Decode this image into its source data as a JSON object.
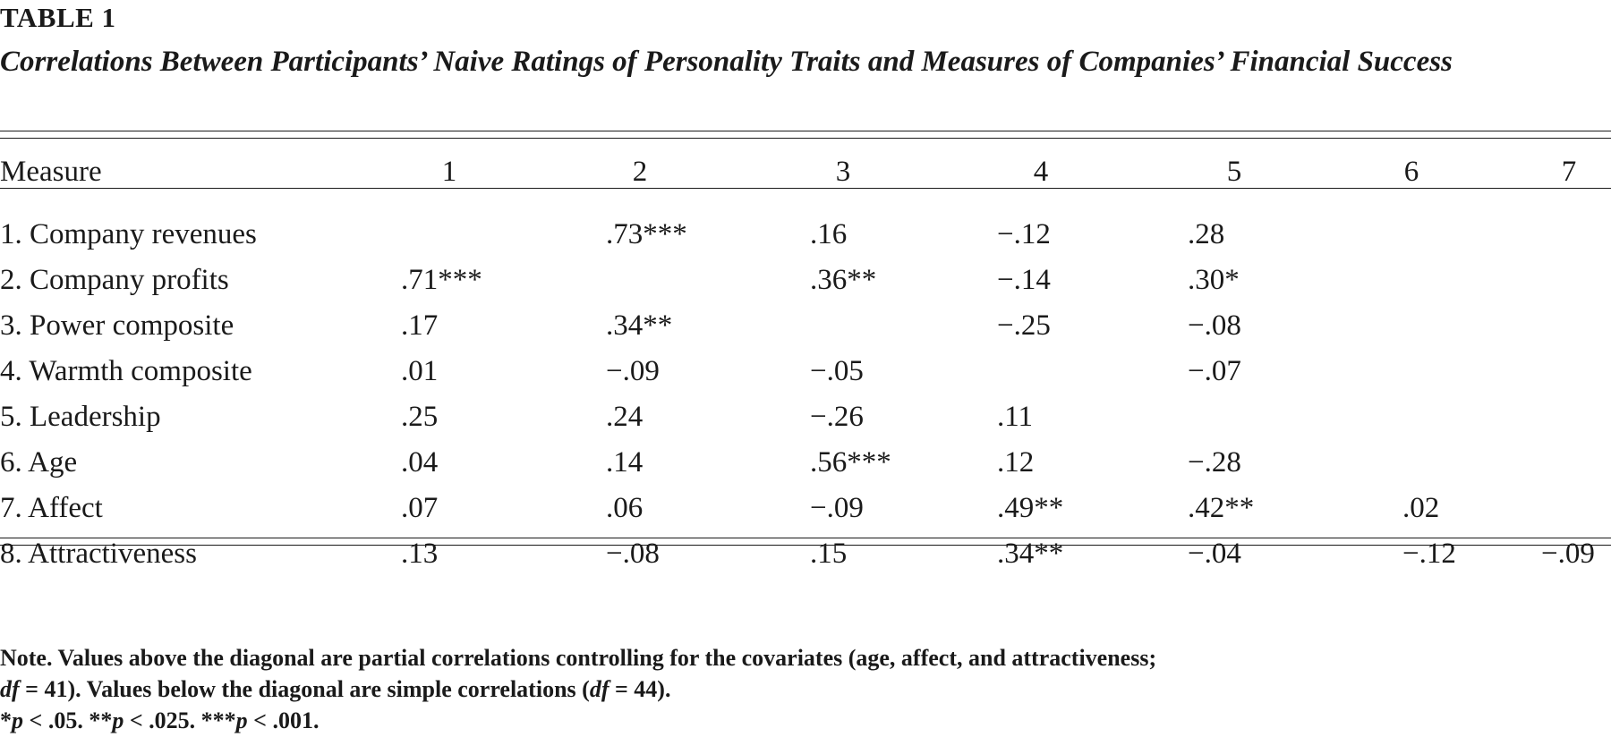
{
  "table": {
    "label": "TABLE 1",
    "title": "Correlations Between Participants’ Naive Ratings of Personality Traits and Measures of Companies’ Financial Success",
    "header": [
      "Measure",
      "1",
      "2",
      "3",
      "4",
      "5",
      "6",
      "7"
    ],
    "rows": [
      {
        "label": "1. Company revenues",
        "cells": [
          "",
          ".73***",
          ".16",
          "−.12",
          ".28",
          "",
          ""
        ]
      },
      {
        "label": "2. Company profits",
        "cells": [
          ".71***",
          "",
          ".36**",
          "−.14",
          ".30*",
          "",
          ""
        ]
      },
      {
        "label": "3. Power composite",
        "cells": [
          ".17",
          ".34**",
          "",
          "−.25",
          "−.08",
          "",
          ""
        ]
      },
      {
        "label": "4. Warmth composite",
        "cells": [
          ".01",
          "−.09",
          "−.05",
          "",
          "−.07",
          "",
          ""
        ]
      },
      {
        "label": "5. Leadership",
        "cells": [
          ".25",
          ".24",
          "−.26",
          ".11",
          "",
          "",
          ""
        ]
      },
      {
        "label": "6. Age",
        "cells": [
          ".04",
          ".14",
          ".56***",
          ".12",
          "−.28",
          "",
          ""
        ]
      },
      {
        "label": "7. Affect",
        "cells": [
          ".07",
          ".06",
          "−.09",
          ".49**",
          ".42**",
          ".02",
          ""
        ]
      },
      {
        "label": "8. Attractiveness",
        "cells": [
          ".13",
          "−.08",
          ".15",
          ".34**",
          "−.04",
          "−.12",
          "−.09"
        ]
      }
    ]
  },
  "note": {
    "label": "Note.",
    "line1_a": "Values above the diagonal are partial correlations controlling for the covariates (age, affect, and attractiveness;",
    "line2_df1": "df",
    "line2_a": " = 41). Values below the diagonal are simple correlations (",
    "line2_df2": "df",
    "line2_b": " = 44).",
    "sig_a_star": "*",
    "sig_a_p": "p",
    "sig_a": " < .05. ",
    "sig_b_star": "**",
    "sig_b_p": "p",
    "sig_b": " < .025. ",
    "sig_c_star": "***",
    "sig_c_p": "p",
    "sig_c": " < .001."
  }
}
